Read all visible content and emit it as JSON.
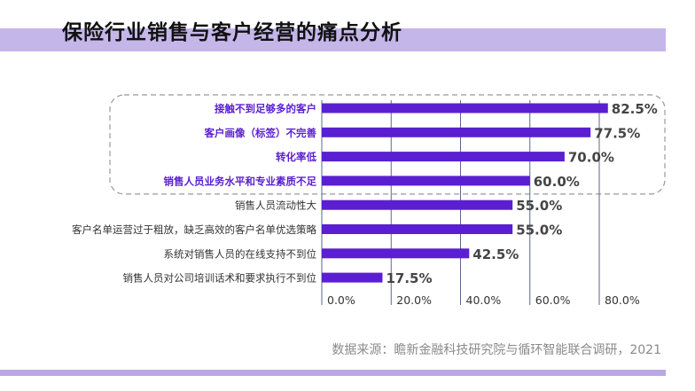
{
  "header": {
    "title": "保险行业销售与客户经营的痛点分析"
  },
  "footer": {
    "source": "数据来源：瞻新金融科技研究院与循环智能联合调研，2021"
  },
  "chart_data": {
    "type": "bar",
    "orientation": "horizontal",
    "categories": [
      "接触不到足够多的客户",
      "客户画像（标签）不完善",
      "转化率低",
      "销售人员业务水平和专业素质不足",
      "销售人员流动性大",
      "客户名单运营过于粗放，缺乏高效的客户名单优选策略",
      "系统对销售人员的在线支持不到位",
      "销售人员对公司培训话术和要求执行不到位"
    ],
    "values": [
      82.5,
      77.5,
      70.0,
      60.0,
      55.0,
      55.0,
      42.5,
      17.5
    ],
    "value_labels": [
      "82.5%",
      "77.5%",
      "70.0%",
      "60.0%",
      "55.0%",
      "55.0%",
      "42.5%",
      "17.5%"
    ],
    "highlighted_categories": 4,
    "xlim": [
      0,
      80
    ],
    "x_ticks": [
      0,
      20,
      40,
      60,
      80
    ],
    "x_tick_labels": [
      "0.0%",
      "20.0%",
      "40.0%",
      "60.0%",
      "80.0%"
    ],
    "grid": true,
    "colors": {
      "bar": "#5a1fd0",
      "highlight_label": "#5a1fd0",
      "normal_label": "#333333",
      "value_label": "#444444",
      "grid": "#5a6a8a",
      "highlight_box": "#999999"
    }
  }
}
